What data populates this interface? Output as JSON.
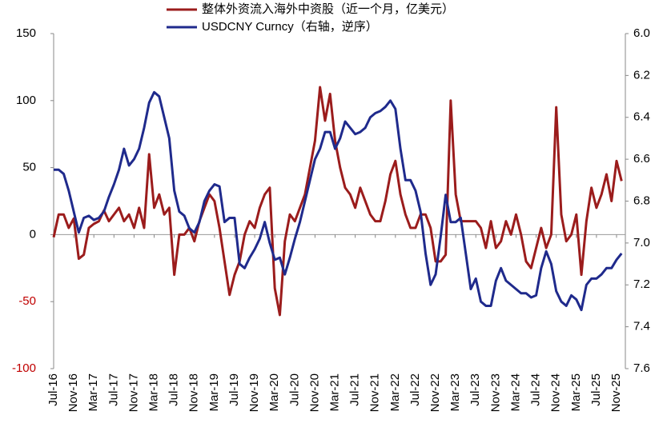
{
  "chart_data": {
    "type": "line",
    "categories": [
      "Jul-16",
      null,
      null,
      null,
      "Nov-16",
      null,
      null,
      null,
      "Mar-17",
      null,
      null,
      null,
      "Jul-17",
      null,
      null,
      null,
      "Nov-17",
      null,
      null,
      null,
      "Mar-18",
      null,
      null,
      null,
      "Jul-18",
      null,
      null,
      null,
      "Nov-18",
      null,
      null,
      null,
      "Mar-19",
      null,
      null,
      null,
      "Jul-19",
      null,
      null,
      null,
      "Nov-19",
      null,
      null,
      null,
      "Mar-20",
      null,
      null,
      null,
      "Jul-20",
      null,
      null,
      null,
      "Nov-20",
      null,
      null,
      null,
      "Mar-21",
      null,
      null,
      null,
      "Jul-21",
      null,
      null,
      null,
      "Nov-21",
      null,
      null,
      null,
      "Mar-22",
      null,
      null,
      null,
      "Jul-22",
      null,
      null,
      null,
      "Nov-22",
      null,
      null,
      null,
      "Mar-23",
      null,
      null,
      null,
      "Jul-23",
      null,
      null,
      null,
      "Nov-23",
      null,
      null,
      null,
      "Mar-24",
      null,
      null,
      null,
      "Jul-24",
      null,
      null,
      null,
      "Nov-24",
      null,
      null,
      null,
      "Mar-25",
      null,
      null,
      null,
      "Jul-25",
      null,
      null,
      null,
      "Nov-25",
      null
    ],
    "series": [
      {
        "name": "整体外资流入海外中资股（近一个月，亿美元）",
        "color": "#9b1c1c",
        "values": [
          -2,
          15,
          15,
          5,
          12,
          -18,
          -15,
          5,
          8,
          10,
          18,
          10,
          15,
          20,
          10,
          15,
          5,
          20,
          5,
          60,
          20,
          30,
          15,
          20,
          -30,
          0,
          0,
          5,
          -5,
          10,
          20,
          30,
          25,
          5,
          -20,
          -45,
          -30,
          -20,
          0,
          10,
          5,
          20,
          30,
          35,
          -40,
          -60,
          -5,
          15,
          10,
          20,
          30,
          50,
          70,
          110,
          85,
          105,
          70,
          50,
          35,
          30,
          20,
          35,
          25,
          15,
          10,
          10,
          25,
          45,
          55,
          30,
          15,
          5,
          5,
          15,
          15,
          5,
          -20,
          -20,
          -15,
          100,
          30,
          10,
          10,
          10,
          10,
          5,
          -10,
          10,
          -10,
          -5,
          10,
          0,
          15,
          0,
          -20,
          -25,
          -10,
          5,
          -10,
          0,
          95,
          15,
          -5,
          0,
          15,
          -30,
          10,
          35,
          20,
          30,
          45,
          25,
          55,
          40
        ]
      },
      {
        "name": "USDCNY Curncy（右轴，逆序）",
        "color": "#1f2a8c",
        "axis": "y2",
        "values": [
          6.65,
          6.65,
          6.67,
          6.75,
          6.85,
          6.95,
          6.88,
          6.87,
          6.89,
          6.88,
          6.85,
          6.78,
          6.72,
          6.65,
          6.55,
          6.63,
          6.6,
          6.55,
          6.45,
          6.33,
          6.28,
          6.3,
          6.4,
          6.5,
          6.75,
          6.85,
          6.87,
          6.93,
          6.95,
          6.9,
          6.8,
          6.75,
          6.72,
          6.73,
          6.9,
          6.88,
          6.88,
          7.1,
          7.12,
          7.07,
          7.03,
          6.98,
          6.9,
          7.0,
          7.08,
          7.07,
          7.15,
          7.07,
          6.98,
          6.9,
          6.8,
          6.7,
          6.6,
          6.55,
          6.47,
          6.47,
          6.55,
          6.5,
          6.42,
          6.45,
          6.48,
          6.47,
          6.45,
          6.4,
          6.38,
          6.37,
          6.35,
          6.32,
          6.36,
          6.55,
          6.7,
          6.7,
          6.75,
          6.85,
          7.05,
          7.2,
          7.15,
          6.97,
          6.77,
          6.9,
          6.9,
          6.88,
          7.05,
          7.22,
          7.17,
          7.28,
          7.3,
          7.3,
          7.18,
          7.12,
          7.18,
          7.2,
          7.22,
          7.24,
          7.24,
          7.26,
          7.25,
          7.12,
          7.04,
          7.1,
          7.23,
          7.28,
          7.3,
          7.25,
          7.27,
          7.32,
          7.2,
          7.17,
          7.17,
          7.15,
          7.12,
          7.12,
          7.08,
          7.05
        ]
      }
    ],
    "ylim": [
      -100,
      150
    ],
    "yticks": [
      -100,
      -50,
      0,
      50,
      100,
      150
    ],
    "negative_tick_color": "#c00000",
    "y2lim": [
      6.0,
      7.6
    ],
    "y2_inverted": true,
    "y2ticks": [
      {
        "value": 6,
        "label": "6.0"
      },
      6.2,
      6.4,
      6.6,
      6.8,
      {
        "value": 7,
        "label": "7.0"
      },
      7.2,
      7.4,
      7.6
    ],
    "legend": "top",
    "grid": false
  }
}
